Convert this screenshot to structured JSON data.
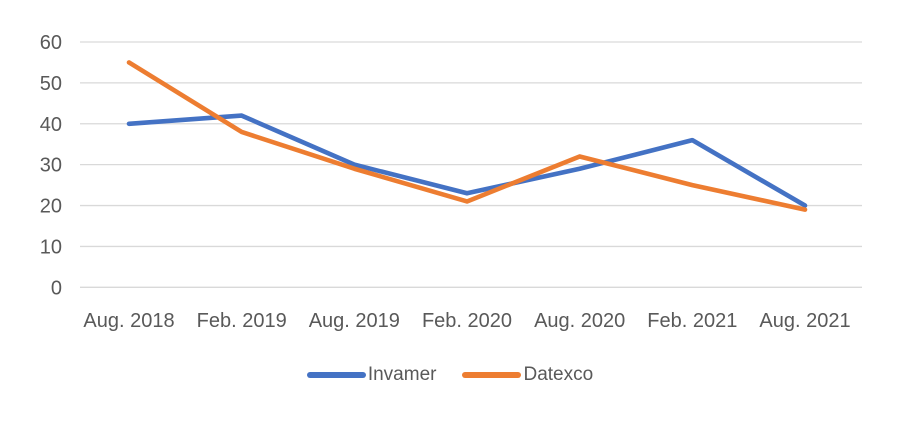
{
  "chart_data": {
    "type": "line",
    "title": "",
    "categories": [
      "Aug. 2018",
      "Feb. 2019",
      "Aug. 2019",
      "Feb. 2020",
      "Aug. 2020",
      "Feb. 2021",
      "Aug. 2021"
    ],
    "series": [
      {
        "name": "Invamer",
        "color": "#4472C4",
        "values": [
          40,
          42,
          30,
          23,
          29,
          36,
          20
        ]
      },
      {
        "name": "Datexco",
        "color": "#ED7D31",
        "values": [
          55,
          38,
          29,
          21,
          32,
          25,
          19
        ]
      }
    ],
    "y_ticks": [
      0,
      10,
      20,
      30,
      40,
      50,
      60
    ],
    "ylim": [
      0,
      60
    ],
    "xlabel": "",
    "ylabel": "",
    "grid": "horizontal-only",
    "gridline_color": "#D9D9D9",
    "axis_label_color": "#595959",
    "legend_position": "bottom-center",
    "background_color": "#FFFFFF"
  }
}
